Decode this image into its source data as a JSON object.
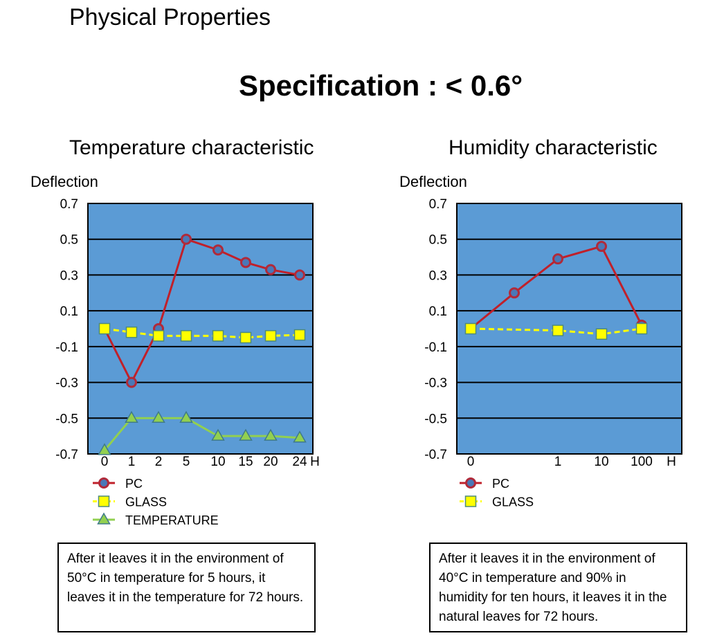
{
  "page_title": "Physical Properties",
  "specification": "Specification : < 0.6°",
  "notes": [
    "After it leaves it in the environment of 50°C in temperature for 5 hours, it leaves it in the temperature for 72 hours.",
    "After it leaves it in the environment of 40°C in temperature and 90% in humidity for ten hours, it leaves it in the natural leaves for 72 hours."
  ],
  "colors": {
    "plot_bg": "#5b9bd5",
    "pc": "#c0202a",
    "glass": "#ffff00",
    "temperature": "#92d050"
  },
  "chart_data": [
    {
      "type": "line",
      "title": "Temperature characteristic",
      "ylabel": "Deflection",
      "xlabel": "H",
      "categories": [
        "0",
        "1",
        "2",
        "5",
        "10",
        "15",
        "20",
        "24"
      ],
      "ylim": [
        -0.7,
        0.7
      ],
      "yticks": [
        "0.7",
        "0.5",
        "0.3",
        "0.1",
        "-0.1",
        "-0.3",
        "-0.5",
        "-0.7"
      ],
      "grid": true,
      "legend": "bottom-left",
      "series": [
        {
          "name": "PC",
          "marker": "circle",
          "values": [
            0.0,
            -0.3,
            0.0,
            0.5,
            0.44,
            0.37,
            0.33,
            0.3
          ]
        },
        {
          "name": "GLASS",
          "marker": "square",
          "values": [
            0.0,
            -0.02,
            -0.04,
            -0.04,
            -0.04,
            -0.05,
            -0.04,
            -0.035
          ]
        },
        {
          "name": "TEMPERATURE",
          "marker": "triangle",
          "values": [
            -0.68,
            -0.5,
            -0.5,
            -0.5,
            -0.6,
            -0.6,
            -0.6,
            -0.61
          ]
        }
      ]
    },
    {
      "type": "line",
      "title": "Humidity characteristic",
      "ylabel": "Deflection",
      "xlabel": "H",
      "categories": [
        "0",
        "",
        "1",
        "10",
        "100"
      ],
      "ylim": [
        -0.7,
        0.7
      ],
      "yticks": [
        "0.7",
        "0.5",
        "0.3",
        "0.1",
        "-0.1",
        "-0.3",
        "-0.5",
        "-0.7"
      ],
      "grid": true,
      "legend": "bottom-left",
      "series": [
        {
          "name": "PC",
          "marker": "circle",
          "values": [
            0.0,
            0.2,
            0.39,
            0.46,
            0.02
          ]
        },
        {
          "name": "GLASS",
          "marker": "square",
          "values": [
            0.0,
            null,
            -0.01,
            -0.03,
            0.0
          ]
        }
      ]
    }
  ]
}
